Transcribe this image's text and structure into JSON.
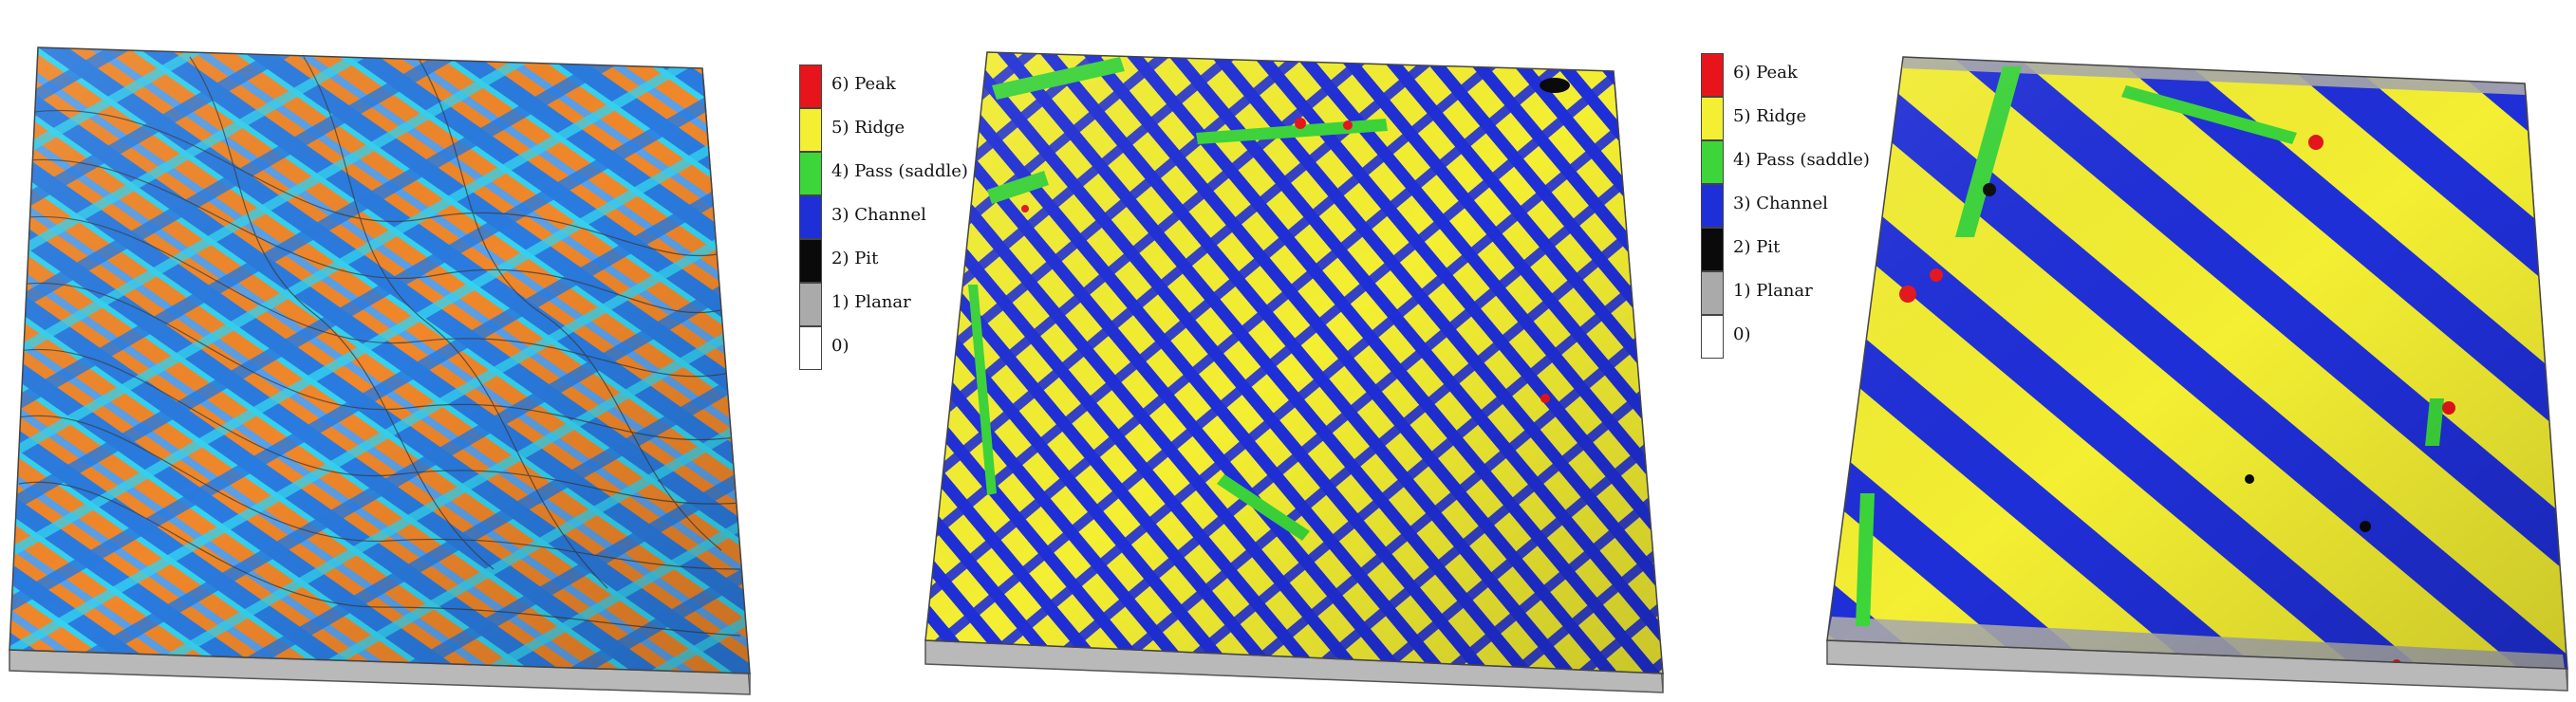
{
  "colors": {
    "peak": "#e8141c",
    "ridge": "#f4ef32",
    "pass": "#3cd63a",
    "channel": "#1f2fd8",
    "pit": "#0a0a0a",
    "planar": "#aaaaaa",
    "zero": "#ffffff",
    "curv_high": "#f0872a",
    "curv_mid": "#5aa0e8",
    "curv_low": "#2a7be0",
    "curv_cyan": "#34d2f0",
    "base_side": "#b9b9b9"
  },
  "legends": [
    {
      "items": [
        {
          "label": "6) Peak",
          "color": "#e8141c"
        },
        {
          "label": "5) Ridge",
          "color": "#f4ef32"
        },
        {
          "label": "4) Pass (saddle)",
          "color": "#3cd63a"
        },
        {
          "label": "3) Channel",
          "color": "#1f2fd8"
        },
        {
          "label": "2) Pit",
          "color": "#0a0a0a"
        },
        {
          "label": "1) Planar",
          "color": "#aaaaaa"
        },
        {
          "label": "0)",
          "color": "#ffffff"
        }
      ]
    },
    {
      "items": [
        {
          "label": "6) Peak",
          "color": "#e8141c"
        },
        {
          "label": "5) Ridge",
          "color": "#f4ef32"
        },
        {
          "label": "4) Pass (saddle)",
          "color": "#3cd63a"
        },
        {
          "label": "3) Channel",
          "color": "#1f2fd8"
        },
        {
          "label": "2) Pit",
          "color": "#0a0a0a"
        },
        {
          "label": "1) Planar",
          "color": "#aaaaaa"
        },
        {
          "label": "0)",
          "color": "#ffffff"
        }
      ]
    }
  ]
}
